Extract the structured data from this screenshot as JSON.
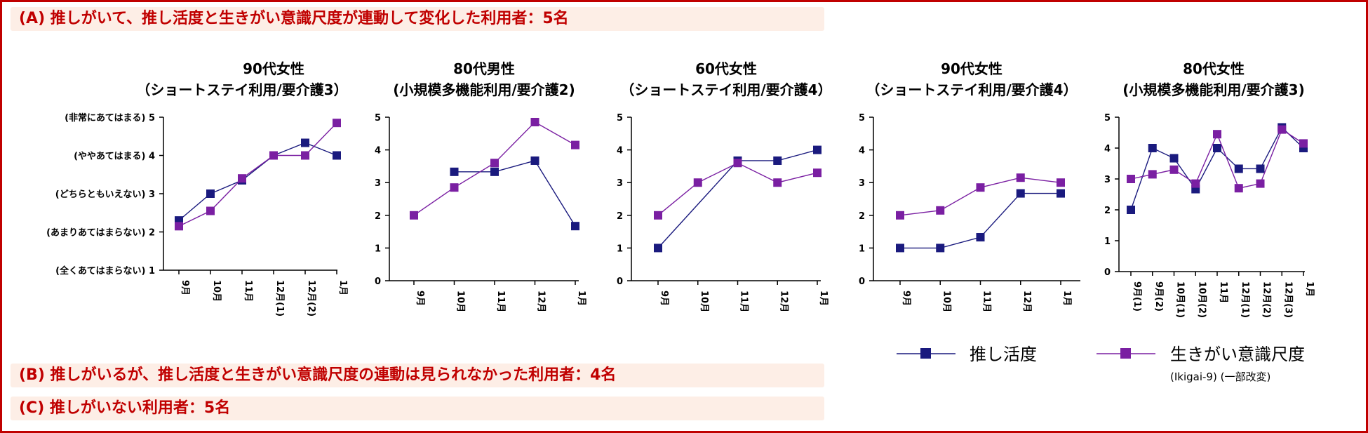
{
  "headings": {
    "a": "(A) 推しがいて、推し活度と生きがい意識尺度が連動して変化した利用者：5名",
    "b": "(B) 推しがいるが、推し活度と生きがい意識尺度の連動は見られなかった利用者：4名",
    "c": "(C) 推しがいない利用者：5名"
  },
  "colors": {
    "oshi": "#1a1a7e",
    "ikigai": "#7a1fa2",
    "accent": "#c00000",
    "band": "#fdeee6"
  },
  "legend": {
    "oshi": "推し活度",
    "ikigai": "生きがい意識尺度",
    "ikigai_note": "(Ikigai-9) (一部改変)"
  },
  "chart_data": [
    {
      "type": "line",
      "title": "90代女性",
      "subtitle": "（ショートステイ利用/要介護3）",
      "categories": [
        "9月",
        "10月",
        "11月",
        "12月(1)",
        "12月(2)",
        "1月"
      ],
      "ylim": [
        1,
        5
      ],
      "yticks": [
        1,
        2,
        3,
        4,
        5
      ],
      "ytick_labels": [
        "(全くあてはまらない) 1",
        "(あまりあてはまらない) 2",
        "(どちらともいえない) 3",
        "(ややあてはまる) 4",
        "(非常にあてはまる) 5"
      ],
      "series": [
        {
          "name": "推し活度",
          "values": [
            2.3,
            3.0,
            3.35,
            4.0,
            4.33,
            4.0
          ]
        },
        {
          "name": "生きがい意識尺度",
          "values": [
            2.15,
            2.55,
            3.4,
            4.0,
            4.0,
            4.85
          ]
        }
      ]
    },
    {
      "type": "line",
      "title": "80代男性",
      "subtitle": "(小規模多機能利用/要介護2)",
      "categories": [
        "9月",
        "10月",
        "11月",
        "12月",
        "1月"
      ],
      "ylim": [
        0,
        5
      ],
      "yticks": [
        0,
        1,
        2,
        3,
        4,
        5
      ],
      "series": [
        {
          "name": "推し活度",
          "values": [
            null,
            3.33,
            3.33,
            3.67,
            1.67
          ]
        },
        {
          "name": "生きがい意識尺度",
          "values": [
            2.0,
            2.85,
            3.6,
            4.85,
            4.15
          ]
        }
      ]
    },
    {
      "type": "line",
      "title": "60代女性",
      "subtitle": "（ショートステイ利用/要介護4）",
      "categories": [
        "9月",
        "10月",
        "11月",
        "12月",
        "1月"
      ],
      "ylim": [
        0,
        5
      ],
      "yticks": [
        0,
        1,
        2,
        3,
        4,
        5
      ],
      "series": [
        {
          "name": "推し活度",
          "values": [
            1.0,
            null,
            3.67,
            3.67,
            4.0
          ]
        },
        {
          "name": "生きがい意識尺度",
          "values": [
            2.0,
            3.0,
            3.6,
            3.0,
            3.3
          ]
        }
      ]
    },
    {
      "type": "line",
      "title": "90代女性",
      "subtitle": "（ショートステイ利用/要介護4）",
      "categories": [
        "9月",
        "10月",
        "11月",
        "12月",
        "1月"
      ],
      "ylim": [
        0,
        5
      ],
      "yticks": [
        0,
        1,
        2,
        3,
        4,
        5
      ],
      "series": [
        {
          "name": "推し活度",
          "values": [
            1.0,
            1.0,
            1.33,
            2.67,
            2.67
          ]
        },
        {
          "name": "生きがい意識尺度",
          "values": [
            2.0,
            2.15,
            2.85,
            3.15,
            3.0
          ]
        }
      ]
    },
    {
      "type": "line",
      "title": "80代女性",
      "subtitle": "(小規模多機能利用/要介護3)",
      "categories": [
        "9月(1)",
        "9月(2)",
        "10月(1)",
        "10月(2)",
        "11月",
        "12月(1)",
        "12月(2)",
        "12月(3)",
        "1月"
      ],
      "ylim": [
        0,
        5
      ],
      "yticks": [
        0,
        1,
        2,
        3,
        4,
        5
      ],
      "series": [
        {
          "name": "推し活度",
          "values": [
            2.0,
            4.0,
            3.67,
            2.67,
            4.0,
            3.33,
            3.33,
            4.67,
            4.0
          ]
        },
        {
          "name": "生きがい意識尺度",
          "values": [
            3.0,
            3.15,
            3.3,
            2.85,
            4.45,
            2.7,
            2.85,
            4.6,
            4.15
          ]
        }
      ]
    }
  ]
}
